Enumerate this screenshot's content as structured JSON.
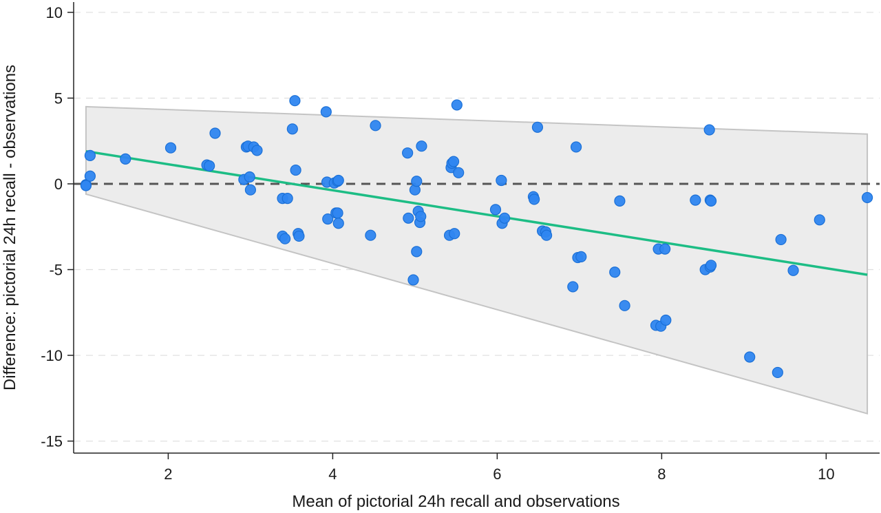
{
  "chart_data": {
    "type": "scatter",
    "title": "",
    "xlabel": "Mean of pictorial 24h recall and observations",
    "ylabel": "Difference: pictorial 24h recall - observations",
    "xlim": [
      0.85,
      10.65
    ],
    "ylim": [
      -15.7,
      10.6
    ],
    "xticks": [
      2,
      4,
      6,
      8,
      10
    ],
    "yticks": [
      -15,
      -10,
      -5,
      0,
      5,
      10
    ],
    "xtick_labels": [
      "2",
      "4",
      "6",
      "8",
      "10"
    ],
    "ytick_labels": [
      "-15",
      "-10",
      "-5",
      "0",
      "5",
      "10"
    ],
    "grid": "horizontal dashed",
    "legend": "none",
    "colors": {
      "points": "#2f86f0",
      "point_edge": "#1a6fd6",
      "regression": "#1dbd85",
      "zero_line": "#555555",
      "band_fill": "#ececec",
      "band_edge": "#c4c4c4",
      "grid": "#dedede"
    },
    "zero_line": 0,
    "limits_of_agreement": {
      "x": [
        1.0,
        10.5
      ],
      "upper": [
        4.5,
        2.9
      ],
      "lower": [
        -0.6,
        -13.4
      ]
    },
    "regression_line": {
      "x": [
        1.0,
        10.5
      ],
      "y": [
        1.9,
        -5.3
      ]
    },
    "points": [
      {
        "x": 1.0,
        "y": -0.05
      },
      {
        "x": 1.0,
        "y": -0.1
      },
      {
        "x": 1.05,
        "y": 0.45
      },
      {
        "x": 1.05,
        "y": 1.65
      },
      {
        "x": 1.48,
        "y": 1.45
      },
      {
        "x": 2.03,
        "y": 2.1
      },
      {
        "x": 2.47,
        "y": 1.1
      },
      {
        "x": 2.5,
        "y": 1.05
      },
      {
        "x": 2.57,
        "y": 2.95
      },
      {
        "x": 2.92,
        "y": 0.25
      },
      {
        "x": 2.95,
        "y": 2.15
      },
      {
        "x": 2.97,
        "y": 2.2
      },
      {
        "x": 2.99,
        "y": 0.4
      },
      {
        "x": 3.0,
        "y": -0.35
      },
      {
        "x": 3.04,
        "y": 2.15
      },
      {
        "x": 3.08,
        "y": 1.95
      },
      {
        "x": 3.39,
        "y": -0.85
      },
      {
        "x": 3.39,
        "y": -3.05
      },
      {
        "x": 3.42,
        "y": -3.2
      },
      {
        "x": 3.45,
        "y": -0.85
      },
      {
        "x": 3.51,
        "y": 3.2
      },
      {
        "x": 3.54,
        "y": 4.85
      },
      {
        "x": 3.55,
        "y": 0.8
      },
      {
        "x": 3.58,
        "y": -2.9
      },
      {
        "x": 3.59,
        "y": -3.05
      },
      {
        "x": 3.92,
        "y": 4.2
      },
      {
        "x": 3.93,
        "y": 0.1
      },
      {
        "x": 3.94,
        "y": -2.05
      },
      {
        "x": 4.02,
        "y": 0.05
      },
      {
        "x": 4.04,
        "y": -1.7
      },
      {
        "x": 4.06,
        "y": 0.15
      },
      {
        "x": 4.07,
        "y": 0.2
      },
      {
        "x": 4.06,
        "y": -1.7
      },
      {
        "x": 4.07,
        "y": -2.3
      },
      {
        "x": 4.46,
        "y": -3.0
      },
      {
        "x": 4.52,
        "y": 3.4
      },
      {
        "x": 4.91,
        "y": 1.8
      },
      {
        "x": 4.92,
        "y": -2.0
      },
      {
        "x": 4.98,
        "y": -5.6
      },
      {
        "x": 5.0,
        "y": -0.35
      },
      {
        "x": 5.02,
        "y": 0.15
      },
      {
        "x": 5.02,
        "y": -3.95
      },
      {
        "x": 5.04,
        "y": -1.6
      },
      {
        "x": 5.06,
        "y": -2.25
      },
      {
        "x": 5.08,
        "y": 2.2
      },
      {
        "x": 5.07,
        "y": -1.9
      },
      {
        "x": 5.42,
        "y": -3.0
      },
      {
        "x": 5.44,
        "y": 0.95
      },
      {
        "x": 5.45,
        "y": 1.2
      },
      {
        "x": 5.47,
        "y": 1.3
      },
      {
        "x": 5.48,
        "y": -2.9
      },
      {
        "x": 5.51,
        "y": 4.6
      },
      {
        "x": 5.53,
        "y": 0.65
      },
      {
        "x": 5.98,
        "y": -1.5
      },
      {
        "x": 6.05,
        "y": 0.2
      },
      {
        "x": 6.06,
        "y": -2.3
      },
      {
        "x": 6.09,
        "y": -2.0
      },
      {
        "x": 6.44,
        "y": -0.75
      },
      {
        "x": 6.45,
        "y": -0.9
      },
      {
        "x": 6.49,
        "y": 3.3
      },
      {
        "x": 6.55,
        "y": -2.75
      },
      {
        "x": 6.59,
        "y": -2.8
      },
      {
        "x": 6.6,
        "y": -3.0
      },
      {
        "x": 6.92,
        "y": -6.0
      },
      {
        "x": 6.96,
        "y": 2.15
      },
      {
        "x": 6.98,
        "y": -4.3
      },
      {
        "x": 7.02,
        "y": -4.25
      },
      {
        "x": 7.43,
        "y": -5.15
      },
      {
        "x": 7.49,
        "y": -1.0
      },
      {
        "x": 7.55,
        "y": -7.1
      },
      {
        "x": 7.93,
        "y": -8.25
      },
      {
        "x": 7.96,
        "y": -3.8
      },
      {
        "x": 7.99,
        "y": -8.3
      },
      {
        "x": 8.04,
        "y": -3.8
      },
      {
        "x": 8.05,
        "y": -7.95
      },
      {
        "x": 8.41,
        "y": -0.95
      },
      {
        "x": 8.53,
        "y": -5.0
      },
      {
        "x": 8.58,
        "y": 3.15
      },
      {
        "x": 8.59,
        "y": -0.95
      },
      {
        "x": 8.6,
        "y": -1.0
      },
      {
        "x": 8.59,
        "y": -4.85
      },
      {
        "x": 8.6,
        "y": -4.75
      },
      {
        "x": 9.07,
        "y": -10.1
      },
      {
        "x": 9.41,
        "y": -11.0
      },
      {
        "x": 9.45,
        "y": -3.25
      },
      {
        "x": 9.6,
        "y": -5.05
      },
      {
        "x": 9.92,
        "y": -2.1
      },
      {
        "x": 10.5,
        "y": -0.8
      }
    ]
  }
}
